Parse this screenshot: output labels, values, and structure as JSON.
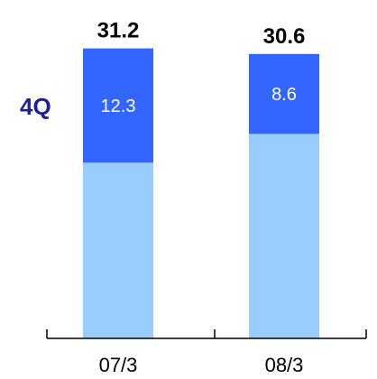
{
  "chart_data": {
    "type": "bar",
    "stacked": true,
    "categories": [
      "07/3",
      "08/3"
    ],
    "series": [
      {
        "name": "",
        "values": [
          18.9,
          22.0
        ],
        "color": "#99ccff"
      },
      {
        "name": "4Q",
        "values": [
          12.3,
          8.6
        ],
        "color": "#3366ff"
      }
    ],
    "totals": [
      31.2,
      30.6
    ],
    "segment_labels": [
      "12.3",
      "8.6"
    ],
    "total_labels": [
      "31.2",
      "30.6"
    ],
    "series_label": "4Q",
    "series_label_color": "#1f1f99",
    "axis_color": "#000000"
  }
}
